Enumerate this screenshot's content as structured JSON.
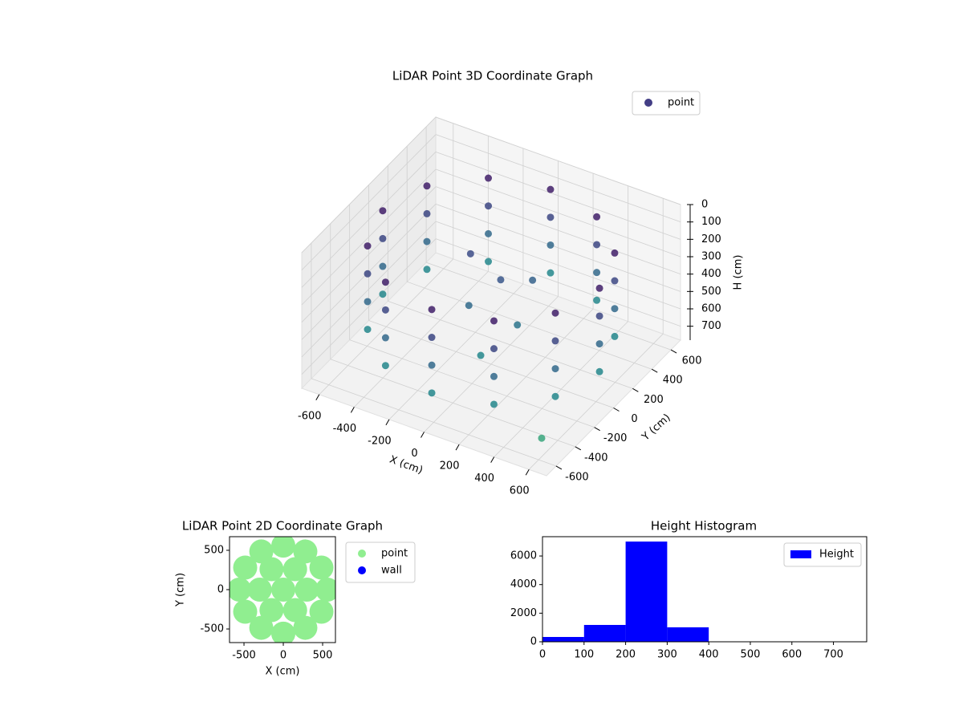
{
  "chart_data": [
    {
      "type": "scatter3d",
      "title": "LiDAR Point 3D Coordinate Graph",
      "xlabel": "X (cm)",
      "ylabel": "Y (cm)",
      "zlabel": "H (cm)",
      "xlim": [
        -700,
        700
      ],
      "ylim": [
        -700,
        700
      ],
      "zlim": [
        0,
        780
      ],
      "z_inverted": true,
      "xticks": [
        -600,
        -400,
        -200,
        0,
        200,
        400,
        600
      ],
      "yticks": [
        -600,
        -400,
        -200,
        0,
        200,
        400,
        600
      ],
      "zticks": [
        0,
        100,
        200,
        300,
        400,
        500,
        600,
        700
      ],
      "grid": true,
      "legend": "upper right",
      "colormap": [
        "#440154",
        "#3b528b",
        "#21918c",
        "#5ec962",
        "#fde725"
      ],
      "series": [
        {
          "name": "point",
          "color": "#433e85",
          "x": [
            620,
            537,
            310,
            0,
            -310,
            -537,
            -620,
            -537,
            -310,
            0,
            310,
            537,
            620,
            537,
            310,
            0,
            -310,
            -537,
            -620,
            -537,
            -310,
            0,
            310,
            537,
            620,
            537,
            310,
            0,
            -310,
            -537,
            -620,
            -537,
            -310,
            0,
            310,
            537,
            620,
            537,
            310,
            0,
            -310,
            -537,
            -620,
            -537,
            -310,
            0,
            310,
            537,
            0,
            -100,
            150,
            50,
            -200,
            100,
            530
          ],
          "y": [
            0,
            310,
            537,
            620,
            537,
            310,
            0,
            -310,
            -537,
            -620,
            -537,
            -310,
            0,
            310,
            537,
            620,
            537,
            310,
            0,
            -310,
            -537,
            -620,
            -537,
            -310,
            0,
            310,
            537,
            620,
            537,
            310,
            0,
            -310,
            -537,
            -620,
            -537,
            -310,
            0,
            310,
            537,
            620,
            537,
            310,
            0,
            -310,
            -537,
            -620,
            -537,
            -310,
            100,
            -50,
            0,
            -200,
            150,
            250,
            -440
          ],
          "z": [
            120,
            120,
            120,
            120,
            120,
            120,
            120,
            120,
            120,
            120,
            120,
            120,
            280,
            280,
            280,
            280,
            280,
            280,
            280,
            280,
            280,
            280,
            280,
            280,
            440,
            440,
            440,
            440,
            440,
            440,
            440,
            440,
            440,
            440,
            440,
            440,
            600,
            600,
            600,
            600,
            600,
            600,
            600,
            600,
            600,
            600,
            600,
            600,
            350,
            450,
            500,
            600,
            300,
            400,
            770
          ]
        }
      ]
    },
    {
      "type": "scatter",
      "title": "LiDAR Point 2D Coordinate Graph",
      "xlabel": "X (cm)",
      "ylabel": "Y (cm)",
      "xlim": [
        -684,
        663
      ],
      "ylim": [
        -673,
        673
      ],
      "xticks": [
        -500,
        0,
        500
      ],
      "yticks": [
        -500,
        0,
        500
      ],
      "legend": "outside right",
      "series": [
        {
          "name": "point",
          "color": "#90ee90",
          "x": [
            0,
            300,
            150,
            -150,
            -300,
            -150,
            150,
            560,
            485,
            280,
            0,
            -280,
            -485,
            -560,
            -485,
            -280,
            0,
            280,
            485
          ],
          "y": [
            0,
            0,
            260,
            260,
            0,
            -260,
            -260,
            0,
            280,
            485,
            560,
            485,
            280,
            0,
            -280,
            -485,
            -560,
            -485,
            -280
          ]
        },
        {
          "name": "wall",
          "color": "#0000ff",
          "x": [],
          "y": []
        }
      ]
    },
    {
      "type": "histogram",
      "title": "Height Histogram",
      "bins": [
        0,
        100,
        200,
        300,
        400,
        500,
        600,
        700
      ],
      "series": [
        {
          "name": "Height",
          "color": "#0000ff",
          "values": [
            336,
            1178,
            7009,
            1010,
            10,
            5,
            2
          ]
        }
      ],
      "xlim": [
        0,
        780
      ],
      "ylim": [
        0,
        7350
      ],
      "xticks": [
        0,
        100,
        200,
        300,
        400,
        500,
        600,
        700
      ],
      "yticks": [
        0,
        2000,
        4000,
        6000
      ],
      "legend": "upper right"
    }
  ]
}
